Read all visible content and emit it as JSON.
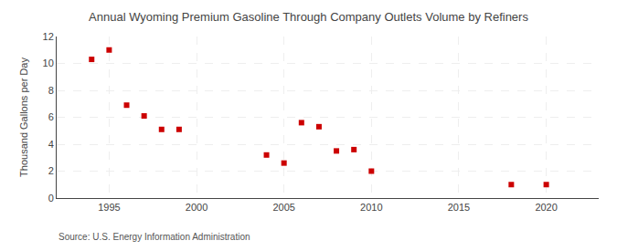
{
  "chart_data": {
    "type": "scatter",
    "title": "Annual Wyoming Premium Gasoline Through Company Outlets Volume by Refiners",
    "ylabel": "Thousand Gallons per Day",
    "annotations": [
      "Source: U.S. Energy Information Administration"
    ],
    "x": [
      1994,
      1995,
      1996,
      1997,
      1998,
      1999,
      2004,
      2005,
      2006,
      2007,
      2008,
      2009,
      2010,
      2018,
      2020
    ],
    "values": [
      10.3,
      11.0,
      6.9,
      6.1,
      5.1,
      5.1,
      3.2,
      2.6,
      5.6,
      5.3,
      3.5,
      3.6,
      2.0,
      1.0,
      1.0
    ],
    "color": "#cc0000",
    "marker": "square",
    "xlim": [
      1992,
      2023
    ],
    "xticks": [
      1995,
      2000,
      2005,
      2010,
      2015,
      2020
    ],
    "ylim": [
      0,
      12
    ],
    "yticks": [
      0,
      2,
      4,
      6,
      8,
      10,
      12
    ],
    "grid": true
  }
}
